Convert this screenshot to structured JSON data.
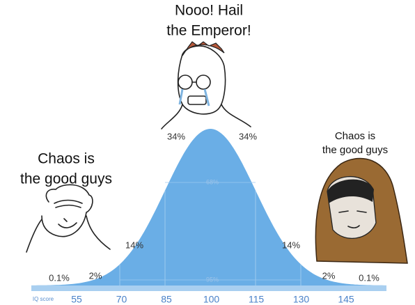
{
  "top_caption": [
    "Nooo! Hail",
    "the Emperor!"
  ],
  "left_caption": [
    "Chaos is",
    "the good guys"
  ],
  "right_caption": [
    "Chaos is",
    "the good guys"
  ],
  "curve": {
    "percent_labels": [
      "0.1%",
      "2%",
      "14%",
      "34%",
      "34%",
      "14%",
      "2%",
      "0.1%"
    ],
    "inner_labels": [
      "68%",
      "95%"
    ],
    "axis_label": "IQ score",
    "axis_ticks": [
      "55",
      "70",
      "85",
      "100",
      "115",
      "130",
      "145"
    ]
  }
}
